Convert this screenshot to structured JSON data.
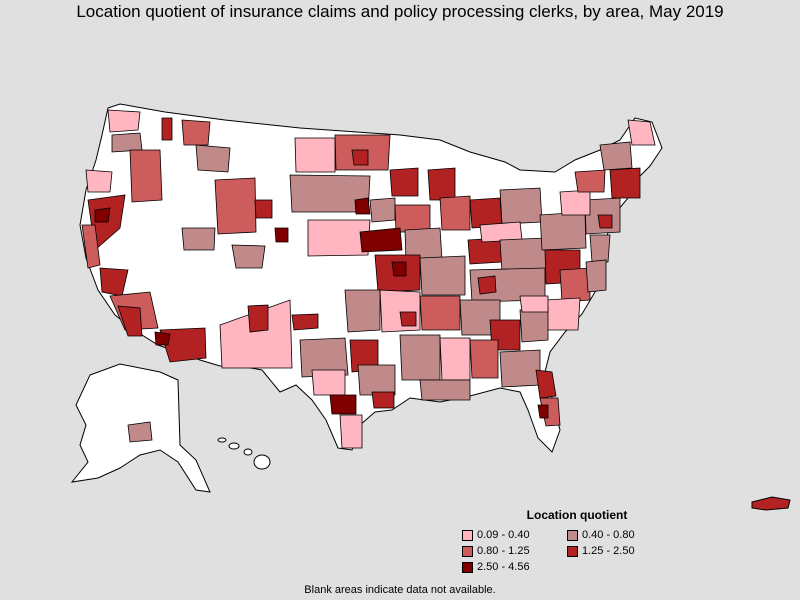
{
  "title": "Location quotient of insurance claims and policy processing clerks, by area, May 2019",
  "legend": {
    "title": "Location quotient",
    "items": [
      {
        "label": "0.09 - 0.40",
        "color": "#ffb6c1"
      },
      {
        "label": "0.40 - 0.80",
        "color": "#c08a8a"
      },
      {
        "label": "0.80 - 1.25",
        "color": "#cd5c5c"
      },
      {
        "label": "1.25 - 2.50",
        "color": "#b22222"
      },
      {
        "label": "2.50 - 4.56",
        "color": "#800000"
      }
    ]
  },
  "note": "Blank areas indicate data not available.",
  "colors": {
    "background": "#e0e0e0",
    "no_data": "#ffffff",
    "border": "#000000"
  }
}
